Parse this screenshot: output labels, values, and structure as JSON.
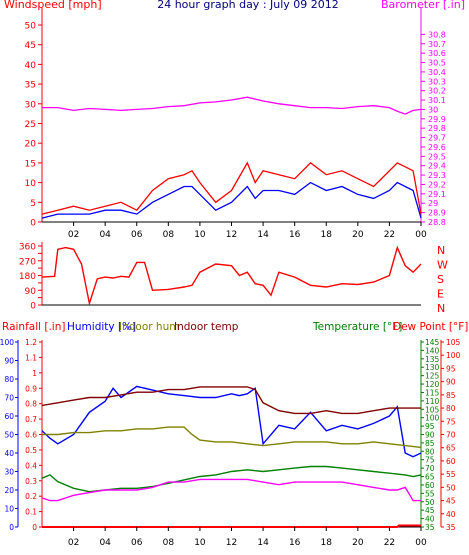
{
  "chart_data": [
    {
      "type": "line",
      "panel": "wind-baro",
      "title": "24 hour graph day : July 09 2012",
      "left_axis_label": "Windspeed [mph]",
      "right_axis_label": "Barometer [.in]",
      "x_ticks": [
        "02",
        "04",
        "06",
        "08",
        "10",
        "12",
        "14",
        "16",
        "18",
        "20",
        "22",
        "00"
      ],
      "x_range_hours": [
        0,
        24
      ],
      "left_ylim": [
        0,
        50
      ],
      "left_ticks": [
        0,
        5,
        10,
        15,
        20,
        25,
        30,
        35,
        40,
        45,
        50
      ],
      "right_ylim": [
        28.8,
        30.9
      ],
      "right_ticks": [
        "28.8",
        "28.9",
        "29",
        "29.1",
        "29.2",
        "29.3",
        "29.4",
        "29.5",
        "29.6",
        "29.7",
        "29.8",
        "29.9",
        "30",
        "30.1",
        "30.2",
        "30.3",
        "30.4",
        "30.5",
        "30.6",
        "30.7",
        "30.8"
      ],
      "grid": false,
      "series": [
        {
          "axis": "right",
          "color": "#ff00ff",
          "x": [
            0,
            1,
            2,
            3,
            4,
            5,
            6,
            7,
            8,
            9,
            10,
            11,
            12,
            13,
            14,
            15,
            16,
            17,
            18,
            19,
            20,
            21,
            22,
            22.5,
            23,
            23.5,
            24
          ],
          "values": [
            30.02,
            30.02,
            29.99,
            30.01,
            30.0,
            29.99,
            30.0,
            30.01,
            30.03,
            30.04,
            30.07,
            30.08,
            30.1,
            30.13,
            30.09,
            30.06,
            30.04,
            30.02,
            30.02,
            30.01,
            30.03,
            30.04,
            30.02,
            29.98,
            29.95,
            29.99,
            30.0
          ]
        },
        {
          "axis": "left",
          "color": "#ff0000",
          "x": [
            0,
            1,
            2,
            3,
            4,
            5,
            6,
            7,
            8,
            9,
            9.5,
            10,
            11,
            12,
            13,
            13.5,
            14,
            15,
            16,
            17,
            18,
            19,
            20,
            21,
            22,
            22.5,
            23,
            23.5,
            24
          ],
          "values": [
            2,
            3,
            4,
            3,
            4,
            5,
            3,
            8,
            11,
            12,
            13,
            10,
            5,
            8,
            15,
            10,
            13,
            12,
            11,
            15,
            12,
            13,
            11,
            9,
            13,
            15,
            14,
            13,
            2
          ]
        },
        {
          "axis": "left",
          "color": "#0000ff",
          "x": [
            0,
            1,
            2,
            3,
            4,
            5,
            6,
            7,
            8,
            9,
            9.5,
            10,
            11,
            12,
            13,
            13.5,
            14,
            15,
            16,
            17,
            18,
            19,
            20,
            21,
            22,
            22.5,
            23,
            23.5,
            24
          ],
          "values": [
            1,
            2,
            2,
            2,
            3,
            3,
            2,
            5,
            7,
            9,
            9,
            7,
            3,
            5,
            9,
            6,
            8,
            8,
            7,
            10,
            8,
            9,
            7,
            6,
            8,
            10,
            9,
            8,
            1
          ]
        }
      ]
    },
    {
      "type": "line",
      "panel": "wind-direction",
      "x_ticks": [
        "02",
        "04",
        "06",
        "08",
        "10",
        "12",
        "14",
        "16",
        "18",
        "20",
        "22",
        "00"
      ],
      "x_range_hours": [
        0,
        24
      ],
      "ylim": [
        0,
        360
      ],
      "left_ticks": [
        "0",
        "90",
        "180",
        "270",
        "360"
      ],
      "ticks": [
        0,
        45,
        90,
        135,
        180,
        225,
        270,
        315,
        360
      ],
      "tick_labels": [
        "0",
        "",
        "90",
        "",
        "180",
        "",
        "270",
        "",
        "360"
      ],
      "compass_labels": [
        "N",
        "W",
        "S",
        "E",
        "N"
      ],
      "grid": false,
      "series": [
        {
          "color": "#ff0000",
          "x": [
            0,
            0.8,
            1.0,
            1.5,
            2.0,
            2.5,
            3.0,
            3.5,
            4.0,
            4.5,
            5.0,
            5.5,
            6.0,
            6.5,
            7.0,
            8.0,
            9.0,
            9.5,
            10.0,
            11.0,
            12.0,
            12.5,
            13.0,
            13.5,
            14.0,
            14.5,
            15.0,
            16.0,
            17.0,
            18.0,
            19.0,
            20.0,
            21.0,
            22.0,
            22.5,
            23.0,
            23.5,
            24.0
          ],
          "values": [
            170,
            175,
            340,
            350,
            340,
            250,
            10,
            160,
            170,
            165,
            175,
            170,
            260,
            260,
            90,
            95,
            110,
            120,
            200,
            250,
            240,
            180,
            200,
            130,
            120,
            60,
            200,
            170,
            120,
            110,
            130,
            125,
            140,
            180,
            350,
            240,
            200,
            250
          ]
        }
      ]
    },
    {
      "type": "line",
      "panel": "temp-humidity-rain",
      "x_ticks": [
        "02",
        "04",
        "06",
        "08",
        "10",
        "12",
        "14",
        "16",
        "18",
        "20",
        "22",
        "00"
      ],
      "x_range_hours": [
        0,
        24
      ],
      "legend": [
        "Rainfall [.in]",
        "Humidity [%]",
        "Indoor hum",
        "Indoor temp",
        "Temperature [°F]",
        "Dew Point [°F]"
      ],
      "axes": {
        "humidity": {
          "label": "Humidity [%]",
          "range": [
            0,
            100
          ],
          "ticks": [
            0,
            10,
            20,
            30,
            40,
            50,
            60,
            70,
            80,
            90,
            100
          ],
          "color": "#0000ff"
        },
        "rainfall": {
          "label": "Rainfall [.in]",
          "range": [
            0,
            1.2
          ],
          "ticks": [
            "0",
            "0.1",
            "0.2",
            "0.3",
            "0.4",
            "0.5",
            "0.6",
            "0.7",
            "0.8",
            "0.9",
            "1",
            "1.1",
            "1.2"
          ],
          "color": "#ff0000"
        },
        "temperature": {
          "label": "Temperature [°F]",
          "range": [
            35,
            145
          ],
          "ticks": [
            35,
            40,
            45,
            50,
            55,
            60,
            65,
            70,
            75,
            80,
            85,
            90,
            95,
            100,
            105,
            110,
            115,
            120,
            125,
            130,
            135,
            140,
            145
          ],
          "color": "#008000"
        },
        "dewpoint": {
          "label": "Dew Point [°F]",
          "range": [
            35,
            105
          ],
          "ticks": [
            35,
            40,
            45,
            50,
            55,
            60,
            65,
            70,
            75,
            80,
            85,
            90,
            95,
            100,
            105
          ],
          "color": "#ff0000"
        }
      },
      "grid": false,
      "series": [
        {
          "name": "Humidity [%]",
          "axis": "humidity",
          "color": "#0000ff",
          "x": [
            0,
            0.5,
            1,
            2,
            3,
            4,
            4.5,
            5,
            6,
            7,
            8,
            9,
            10,
            11,
            12,
            12.5,
            13,
            13.5,
            14,
            15,
            16,
            17,
            18,
            19,
            20,
            21,
            22,
            22.5,
            23,
            23.5,
            24
          ],
          "values": [
            52,
            48,
            45,
            50,
            62,
            68,
            75,
            70,
            76,
            74,
            72,
            71,
            70,
            70,
            72,
            71,
            72,
            75,
            45,
            55,
            53,
            62,
            52,
            55,
            53,
            56,
            60,
            65,
            40,
            38,
            40
          ]
        },
        {
          "name": "Indoor hum",
          "axis": "humidity",
          "color": "#808000",
          "x": [
            0,
            1,
            2,
            3,
            4,
            5,
            6,
            7,
            8,
            9,
            9.5,
            10,
            11,
            12,
            13,
            14,
            15,
            16,
            17,
            18,
            19,
            20,
            21,
            22,
            23,
            24
          ],
          "values": [
            50,
            50,
            51,
            51,
            52,
            52,
            53,
            53,
            54,
            54,
            50,
            47,
            46,
            46,
            45,
            44,
            45,
            46,
            46,
            46,
            45,
            45,
            46,
            45,
            44,
            43
          ]
        },
        {
          "name": "Indoor temp",
          "axis": "dewpoint",
          "color": "#800000",
          "x": [
            0,
            1,
            2,
            3,
            4,
            5,
            6,
            7,
            8,
            9,
            10,
            11,
            12,
            13,
            13.5,
            14,
            15,
            16,
            17,
            18,
            19,
            20,
            21,
            22,
            23,
            24
          ],
          "values": [
            81,
            82,
            83,
            84,
            84,
            85,
            86,
            86,
            87,
            87,
            88,
            88,
            88,
            88,
            87,
            82,
            79,
            78,
            78,
            79,
            78,
            78,
            79,
            80,
            80,
            80
          ]
        },
        {
          "name": "Temperature [°F]",
          "axis": "temperature",
          "color": "#008000",
          "x": [
            0,
            0.5,
            1,
            2,
            3,
            4,
            5,
            6,
            7,
            8,
            9,
            10,
            11,
            12,
            13,
            14,
            15,
            16,
            17,
            18,
            19,
            20,
            21,
            22,
            23,
            23.5,
            24
          ],
          "values": [
            64,
            66,
            62,
            58,
            56,
            57,
            58,
            58,
            59,
            61,
            63,
            65,
            66,
            68,
            69,
            68,
            69,
            70,
            71,
            71,
            70,
            69,
            68,
            67,
            66,
            65,
            66
          ]
        },
        {
          "name": "Dew Point [°F]",
          "axis": "dewpoint",
          "color": "#ff00ff",
          "x": [
            0,
            0.5,
            1,
            2,
            3,
            4,
            5,
            6,
            7,
            8,
            9,
            10,
            11,
            12,
            13,
            14,
            15,
            16,
            17,
            18,
            19,
            20,
            21,
            22,
            22.5,
            23,
            23.5,
            24
          ],
          "values": [
            46,
            45,
            45,
            47,
            48,
            49,
            49,
            49,
            50,
            52,
            52,
            53,
            53,
            53,
            53,
            52,
            51,
            52,
            52,
            52,
            52,
            51,
            50,
            49,
            49,
            50,
            45,
            45
          ]
        },
        {
          "name": "Rainfall [.in]",
          "axis": "rainfall",
          "color": "#ff0000",
          "x": [
            0,
            22.5,
            22.6,
            24
          ],
          "values": [
            0,
            0,
            0.01,
            0.01
          ]
        }
      ]
    }
  ]
}
